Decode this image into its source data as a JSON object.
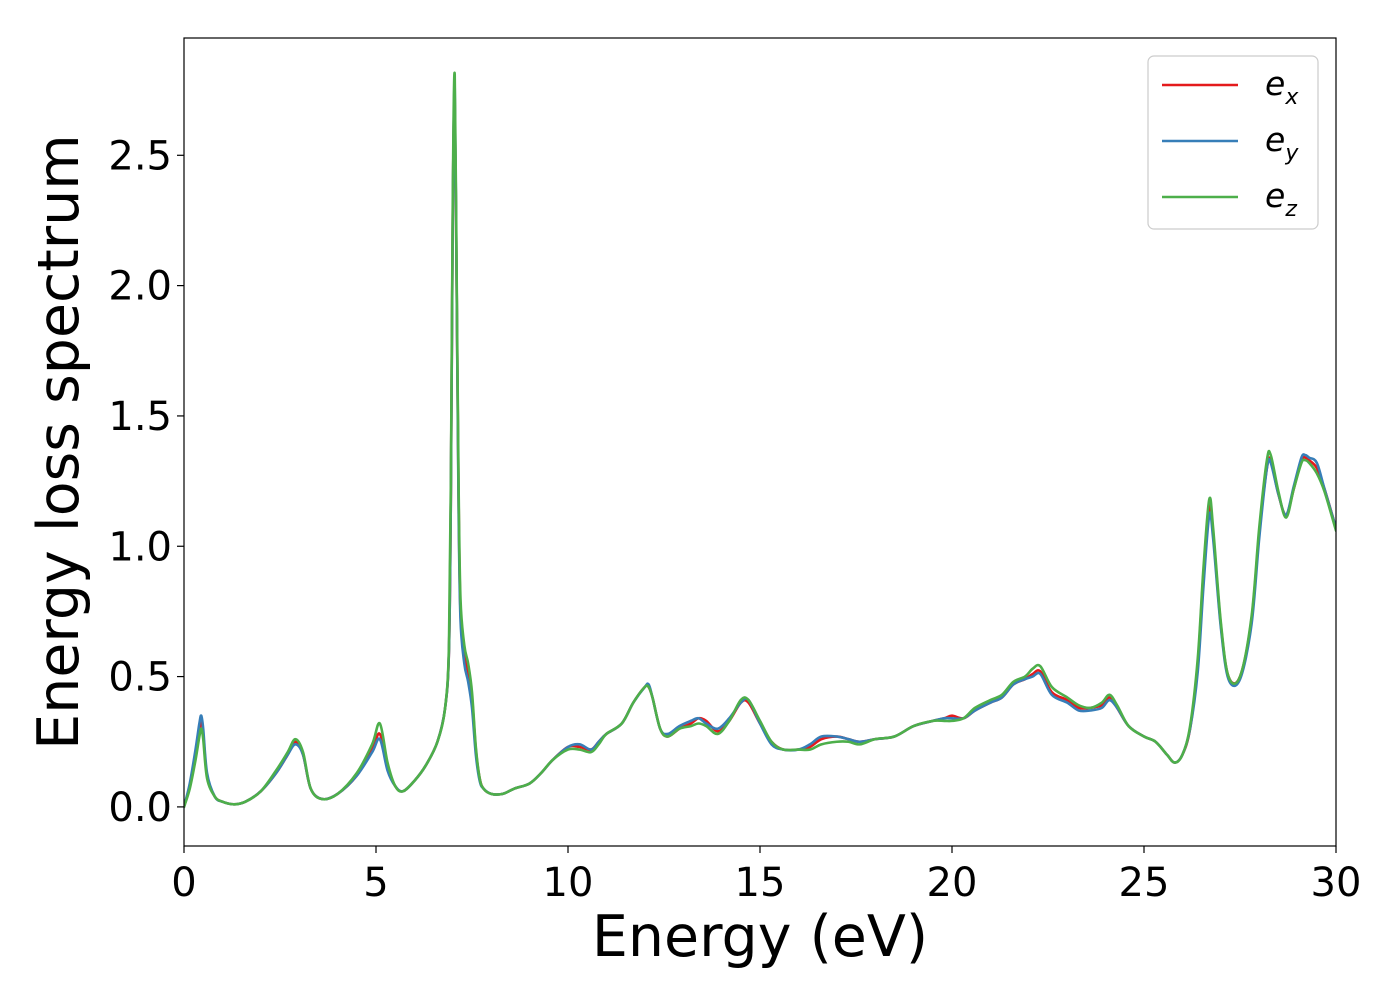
{
  "chart_data": {
    "type": "line",
    "title": "",
    "xlabel": "Energy (eV)",
    "ylabel": "Energy loss spectrum",
    "xlim": [
      0,
      30
    ],
    "ylim": [
      -0.15,
      2.95
    ],
    "xticks": [
      0,
      5,
      10,
      15,
      20,
      25,
      30
    ],
    "xtick_labels": [
      "0",
      "5",
      "10",
      "15",
      "20",
      "25",
      "30"
    ],
    "yticks": [
      0.0,
      0.5,
      1.0,
      1.5,
      2.0,
      2.5
    ],
    "ytick_labels": [
      "0.0",
      "0.5",
      "1.0",
      "1.5",
      "2.0",
      "2.5"
    ],
    "grid": false,
    "legend_position": "top-right",
    "series": [
      {
        "name": "e_x",
        "label_base": "e",
        "label_sub": "x",
        "color": "#e41a1c",
        "x": [
          0,
          0.15,
          0.3,
          0.4,
          0.45,
          0.5,
          0.6,
          0.8,
          1.0,
          1.3,
          1.6,
          2.0,
          2.4,
          2.7,
          2.9,
          3.1,
          3.3,
          3.6,
          4.0,
          4.5,
          4.9,
          5.1,
          5.3,
          5.5,
          5.7,
          6.0,
          6.3,
          6.6,
          6.8,
          6.9,
          6.95,
          7.0,
          7.05,
          7.1,
          7.15,
          7.2,
          7.3,
          7.4,
          7.5,
          7.6,
          7.7,
          7.8,
          8.0,
          8.3,
          8.6,
          9.0,
          9.3,
          9.6,
          10.0,
          10.3,
          10.6,
          10.8,
          11.0,
          11.4,
          11.7,
          12.0,
          12.1,
          12.2,
          12.4,
          12.6,
          12.9,
          13.2,
          13.4,
          13.6,
          13.9,
          14.2,
          14.5,
          14.7,
          15.0,
          15.3,
          15.6,
          16.0,
          16.3,
          16.6,
          17.0,
          17.3,
          17.6,
          18.0,
          18.5,
          19.0,
          19.5,
          19.8,
          20.0,
          20.3,
          20.6,
          21.0,
          21.3,
          21.6,
          21.9,
          22.1,
          22.3,
          22.6,
          23.0,
          23.3,
          23.6,
          23.9,
          24.1,
          24.3,
          24.6,
          25.0,
          25.3,
          25.6,
          25.8,
          26.0,
          26.2,
          26.4,
          26.55,
          26.7,
          26.8,
          27.0,
          27.2,
          27.5,
          27.8,
          28.0,
          28.2,
          28.3,
          28.5,
          28.7,
          28.9,
          29.1,
          29.2,
          29.3,
          29.5,
          29.7,
          30.0
        ],
        "y": [
          0.0,
          0.08,
          0.2,
          0.3,
          0.33,
          0.28,
          0.12,
          0.04,
          0.02,
          0.01,
          0.02,
          0.06,
          0.13,
          0.2,
          0.25,
          0.2,
          0.07,
          0.03,
          0.05,
          0.12,
          0.22,
          0.28,
          0.15,
          0.08,
          0.06,
          0.1,
          0.16,
          0.25,
          0.38,
          0.6,
          1.2,
          2.3,
          2.72,
          2.0,
          1.2,
          0.75,
          0.58,
          0.52,
          0.42,
          0.22,
          0.11,
          0.07,
          0.05,
          0.05,
          0.07,
          0.09,
          0.13,
          0.18,
          0.23,
          0.23,
          0.22,
          0.25,
          0.28,
          0.32,
          0.4,
          0.46,
          0.46,
          0.42,
          0.3,
          0.27,
          0.3,
          0.32,
          0.34,
          0.33,
          0.29,
          0.33,
          0.4,
          0.4,
          0.32,
          0.25,
          0.22,
          0.22,
          0.23,
          0.26,
          0.27,
          0.26,
          0.25,
          0.26,
          0.27,
          0.31,
          0.33,
          0.34,
          0.35,
          0.34,
          0.37,
          0.4,
          0.42,
          0.47,
          0.49,
          0.51,
          0.52,
          0.44,
          0.41,
          0.38,
          0.38,
          0.39,
          0.42,
          0.38,
          0.31,
          0.27,
          0.25,
          0.2,
          0.17,
          0.2,
          0.3,
          0.55,
          0.9,
          1.15,
          1.05,
          0.7,
          0.5,
          0.5,
          0.72,
          1.05,
          1.3,
          1.33,
          1.2,
          1.12,
          1.22,
          1.33,
          1.34,
          1.33,
          1.3,
          1.22,
          1.07
        ]
      },
      {
        "name": "e_y",
        "label_base": "e",
        "label_sub": "y",
        "color": "#377eb8",
        "x": [
          0,
          0.15,
          0.3,
          0.4,
          0.45,
          0.5,
          0.6,
          0.8,
          1.0,
          1.3,
          1.6,
          2.0,
          2.4,
          2.7,
          2.9,
          3.1,
          3.3,
          3.6,
          4.0,
          4.5,
          4.9,
          5.1,
          5.3,
          5.5,
          5.7,
          6.0,
          6.3,
          6.6,
          6.8,
          6.9,
          6.95,
          7.0,
          7.05,
          7.1,
          7.15,
          7.2,
          7.3,
          7.4,
          7.5,
          7.6,
          7.7,
          7.8,
          8.0,
          8.3,
          8.6,
          9.0,
          9.3,
          9.6,
          10.0,
          10.3,
          10.6,
          10.8,
          11.0,
          11.4,
          11.7,
          12.0,
          12.1,
          12.2,
          12.4,
          12.6,
          12.9,
          13.2,
          13.4,
          13.6,
          13.9,
          14.2,
          14.5,
          14.7,
          15.0,
          15.3,
          15.6,
          16.0,
          16.3,
          16.6,
          17.0,
          17.3,
          17.6,
          18.0,
          18.5,
          19.0,
          19.5,
          19.8,
          20.0,
          20.3,
          20.6,
          21.0,
          21.3,
          21.6,
          21.9,
          22.1,
          22.3,
          22.6,
          23.0,
          23.3,
          23.6,
          23.9,
          24.1,
          24.3,
          24.6,
          25.0,
          25.3,
          25.6,
          25.8,
          26.0,
          26.2,
          26.4,
          26.55,
          26.7,
          26.8,
          27.0,
          27.2,
          27.5,
          27.8,
          28.0,
          28.2,
          28.3,
          28.5,
          28.7,
          28.9,
          29.1,
          29.2,
          29.3,
          29.5,
          29.7,
          30.0
        ],
        "y": [
          0.0,
          0.09,
          0.22,
          0.32,
          0.35,
          0.3,
          0.13,
          0.04,
          0.02,
          0.01,
          0.02,
          0.06,
          0.13,
          0.2,
          0.24,
          0.2,
          0.07,
          0.03,
          0.05,
          0.12,
          0.21,
          0.26,
          0.14,
          0.08,
          0.06,
          0.1,
          0.16,
          0.25,
          0.38,
          0.6,
          1.2,
          2.28,
          2.76,
          2.0,
          1.15,
          0.72,
          0.55,
          0.48,
          0.38,
          0.2,
          0.1,
          0.07,
          0.05,
          0.05,
          0.07,
          0.09,
          0.13,
          0.18,
          0.23,
          0.24,
          0.22,
          0.25,
          0.28,
          0.32,
          0.4,
          0.46,
          0.47,
          0.42,
          0.3,
          0.28,
          0.31,
          0.33,
          0.34,
          0.32,
          0.3,
          0.34,
          0.4,
          0.41,
          0.32,
          0.24,
          0.22,
          0.22,
          0.24,
          0.27,
          0.27,
          0.26,
          0.25,
          0.26,
          0.27,
          0.31,
          0.33,
          0.34,
          0.34,
          0.34,
          0.37,
          0.4,
          0.42,
          0.47,
          0.49,
          0.5,
          0.51,
          0.43,
          0.4,
          0.37,
          0.37,
          0.38,
          0.41,
          0.38,
          0.31,
          0.27,
          0.25,
          0.2,
          0.17,
          0.2,
          0.3,
          0.52,
          0.85,
          1.12,
          1.03,
          0.69,
          0.49,
          0.49,
          0.7,
          1.03,
          1.3,
          1.32,
          1.2,
          1.12,
          1.23,
          1.34,
          1.35,
          1.34,
          1.32,
          1.22,
          1.07
        ]
      },
      {
        "name": "e_z",
        "label_base": "e",
        "label_sub": "z",
        "color": "#4daf4a",
        "x": [
          0,
          0.15,
          0.3,
          0.4,
          0.45,
          0.5,
          0.6,
          0.8,
          1.0,
          1.3,
          1.6,
          2.0,
          2.4,
          2.7,
          2.9,
          3.1,
          3.3,
          3.6,
          4.0,
          4.5,
          4.9,
          5.1,
          5.3,
          5.5,
          5.7,
          6.0,
          6.3,
          6.6,
          6.8,
          6.9,
          6.95,
          7.0,
          7.05,
          7.1,
          7.15,
          7.2,
          7.3,
          7.4,
          7.5,
          7.6,
          7.7,
          7.8,
          8.0,
          8.3,
          8.6,
          9.0,
          9.3,
          9.6,
          10.0,
          10.3,
          10.6,
          10.8,
          11.0,
          11.4,
          11.7,
          12.0,
          12.1,
          12.2,
          12.4,
          12.6,
          12.9,
          13.2,
          13.4,
          13.6,
          13.9,
          14.2,
          14.5,
          14.7,
          15.0,
          15.3,
          15.6,
          16.0,
          16.3,
          16.6,
          17.0,
          17.3,
          17.6,
          18.0,
          18.5,
          19.0,
          19.5,
          19.8,
          20.0,
          20.3,
          20.6,
          21.0,
          21.3,
          21.6,
          21.9,
          22.1,
          22.3,
          22.6,
          23.0,
          23.3,
          23.6,
          23.9,
          24.1,
          24.3,
          24.6,
          25.0,
          25.3,
          25.6,
          25.8,
          26.0,
          26.2,
          26.4,
          26.55,
          26.7,
          26.8,
          27.0,
          27.2,
          27.5,
          27.8,
          28.0,
          28.2,
          28.3,
          28.5,
          28.7,
          28.9,
          29.1,
          29.2,
          29.3,
          29.5,
          29.7,
          30.0
        ],
        "y": [
          0.0,
          0.07,
          0.18,
          0.27,
          0.3,
          0.26,
          0.11,
          0.04,
          0.02,
          0.01,
          0.02,
          0.06,
          0.14,
          0.21,
          0.26,
          0.21,
          0.07,
          0.03,
          0.05,
          0.13,
          0.24,
          0.32,
          0.17,
          0.08,
          0.06,
          0.1,
          0.16,
          0.25,
          0.38,
          0.62,
          1.25,
          2.35,
          2.81,
          2.05,
          1.25,
          0.8,
          0.62,
          0.55,
          0.44,
          0.23,
          0.11,
          0.07,
          0.05,
          0.05,
          0.07,
          0.09,
          0.13,
          0.18,
          0.22,
          0.22,
          0.21,
          0.24,
          0.28,
          0.32,
          0.4,
          0.46,
          0.46,
          0.42,
          0.3,
          0.27,
          0.3,
          0.31,
          0.32,
          0.31,
          0.28,
          0.33,
          0.41,
          0.41,
          0.33,
          0.25,
          0.22,
          0.22,
          0.22,
          0.24,
          0.25,
          0.25,
          0.24,
          0.26,
          0.27,
          0.31,
          0.33,
          0.33,
          0.33,
          0.34,
          0.38,
          0.41,
          0.43,
          0.48,
          0.5,
          0.53,
          0.54,
          0.46,
          0.42,
          0.39,
          0.38,
          0.4,
          0.43,
          0.39,
          0.31,
          0.27,
          0.25,
          0.2,
          0.17,
          0.2,
          0.31,
          0.57,
          0.92,
          1.18,
          1.07,
          0.71,
          0.5,
          0.5,
          0.73,
          1.07,
          1.33,
          1.35,
          1.21,
          1.11,
          1.22,
          1.32,
          1.33,
          1.32,
          1.28,
          1.21,
          1.06
        ]
      }
    ]
  }
}
